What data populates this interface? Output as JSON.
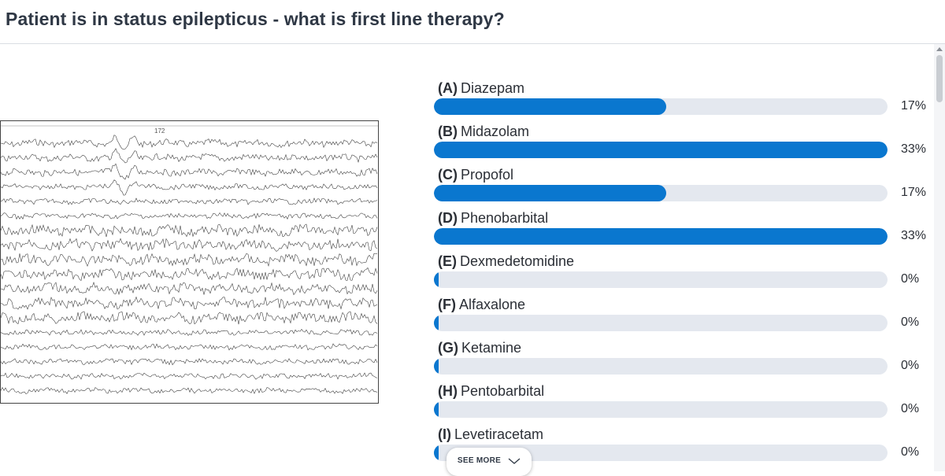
{
  "question": "Patient is in status epilepticus - what is first line therapy?",
  "image": {
    "caption_number": "172"
  },
  "options": [
    {
      "letter": "(A)",
      "label": "Diazepam",
      "percent": 17,
      "percent_text": "17%"
    },
    {
      "letter": "(B)",
      "label": "Midazolam",
      "percent": 33,
      "percent_text": "33%"
    },
    {
      "letter": "(C)",
      "label": "Propofol",
      "percent": 17,
      "percent_text": "17%"
    },
    {
      "letter": "(D)",
      "label": "Phenobarbital",
      "percent": 33,
      "percent_text": "33%"
    },
    {
      "letter": "(E)",
      "label": "Dexmedetomidine",
      "percent": 0,
      "percent_text": "0%"
    },
    {
      "letter": "(F)",
      "label": "Alfaxalone",
      "percent": 0,
      "percent_text": "0%"
    },
    {
      "letter": "(G)",
      "label": "Ketamine",
      "percent": 0,
      "percent_text": "0%"
    },
    {
      "letter": "(H)",
      "label": "Pentobarbital",
      "percent": 0,
      "percent_text": "0%"
    },
    {
      "letter": "(I)",
      "label": "Levetiracetam",
      "percent": 0,
      "percent_text": "0%"
    }
  ],
  "max_percent": 33,
  "see_more": "SEE MORE",
  "colors": {
    "bar_fill": "#0a77cf",
    "bar_track": "#e4e8ef",
    "title": "#2f3845"
  },
  "icons": {
    "see_more": "chevron-down-icon",
    "scroll": "scroll-up-icon"
  }
}
